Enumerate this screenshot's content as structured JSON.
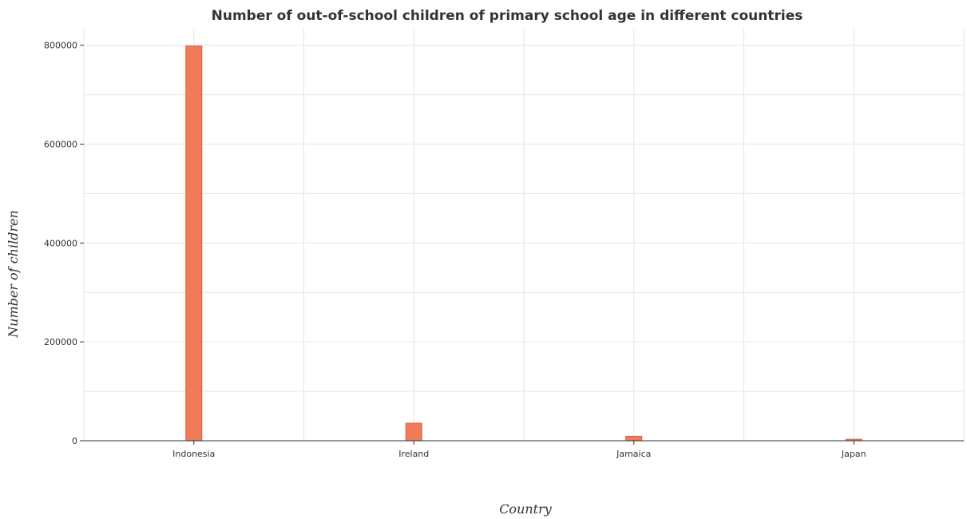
{
  "chart_data": {
    "type": "bar",
    "title": "Number of out-of-school children of primary school age in different countries",
    "xlabel": "Country",
    "ylabel": "Number of children",
    "categories": [
      "Indonesia",
      "Ireland",
      "Jamaica",
      "Japan"
    ],
    "values": [
      798500,
      35500,
      9000,
      3000
    ],
    "ylim": [
      0,
      835000
    ],
    "yticks": [
      0,
      200000,
      400000,
      600000,
      800000
    ],
    "ytick_labels": [
      "0",
      "200000",
      "400000",
      "600000",
      "800000"
    ],
    "grid": true,
    "bar_color": "#ef7b5a"
  }
}
